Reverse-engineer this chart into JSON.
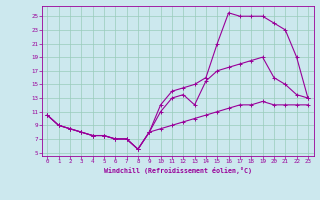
{
  "xlabel": "Windchill (Refroidissement éolien,°C)",
  "bg_color": "#cce8ee",
  "line_color": "#990099",
  "grid_color": "#99ccbb",
  "xlim": [
    -0.5,
    23.5
  ],
  "ylim": [
    4.5,
    26.5
  ],
  "xticks": [
    0,
    1,
    2,
    3,
    4,
    5,
    6,
    7,
    8,
    9,
    10,
    11,
    12,
    13,
    14,
    15,
    16,
    17,
    18,
    19,
    20,
    21,
    22,
    23
  ],
  "yticks": [
    5,
    7,
    9,
    11,
    13,
    15,
    17,
    19,
    21,
    23,
    25
  ],
  "line1_x": [
    0,
    1,
    2,
    3,
    4,
    5,
    6,
    7,
    8,
    9,
    10,
    11,
    12,
    13,
    14,
    15,
    16,
    17,
    18,
    19,
    20,
    21,
    22,
    23
  ],
  "line1_y": [
    10.5,
    9,
    8.5,
    8,
    7.5,
    7.5,
    7,
    7,
    5.5,
    8,
    8.5,
    9,
    9.5,
    10,
    10.5,
    11,
    11.5,
    12,
    12,
    12.5,
    12,
    12,
    12,
    12
  ],
  "line2_x": [
    0,
    1,
    2,
    3,
    4,
    5,
    6,
    7,
    8,
    9,
    10,
    11,
    12,
    13,
    14,
    15,
    16,
    17,
    18,
    19,
    20,
    21,
    22,
    23
  ],
  "line2_y": [
    10.5,
    9,
    8.5,
    8,
    7.5,
    7.5,
    7,
    7,
    5.5,
    8,
    11,
    13,
    13.5,
    12,
    15.5,
    17,
    17.5,
    18,
    18.5,
    19,
    16,
    15,
    13.5,
    13
  ],
  "line3_x": [
    0,
    1,
    2,
    3,
    4,
    5,
    6,
    7,
    8,
    9,
    10,
    11,
    12,
    13,
    14,
    15,
    16,
    17,
    18,
    19,
    20,
    21,
    22,
    23
  ],
  "line3_y": [
    10.5,
    9,
    8.5,
    8,
    7.5,
    7.5,
    7,
    7,
    5.5,
    8,
    12,
    14,
    14.5,
    15,
    16,
    21,
    25.5,
    25,
    25,
    25,
    24,
    23,
    19,
    13
  ]
}
